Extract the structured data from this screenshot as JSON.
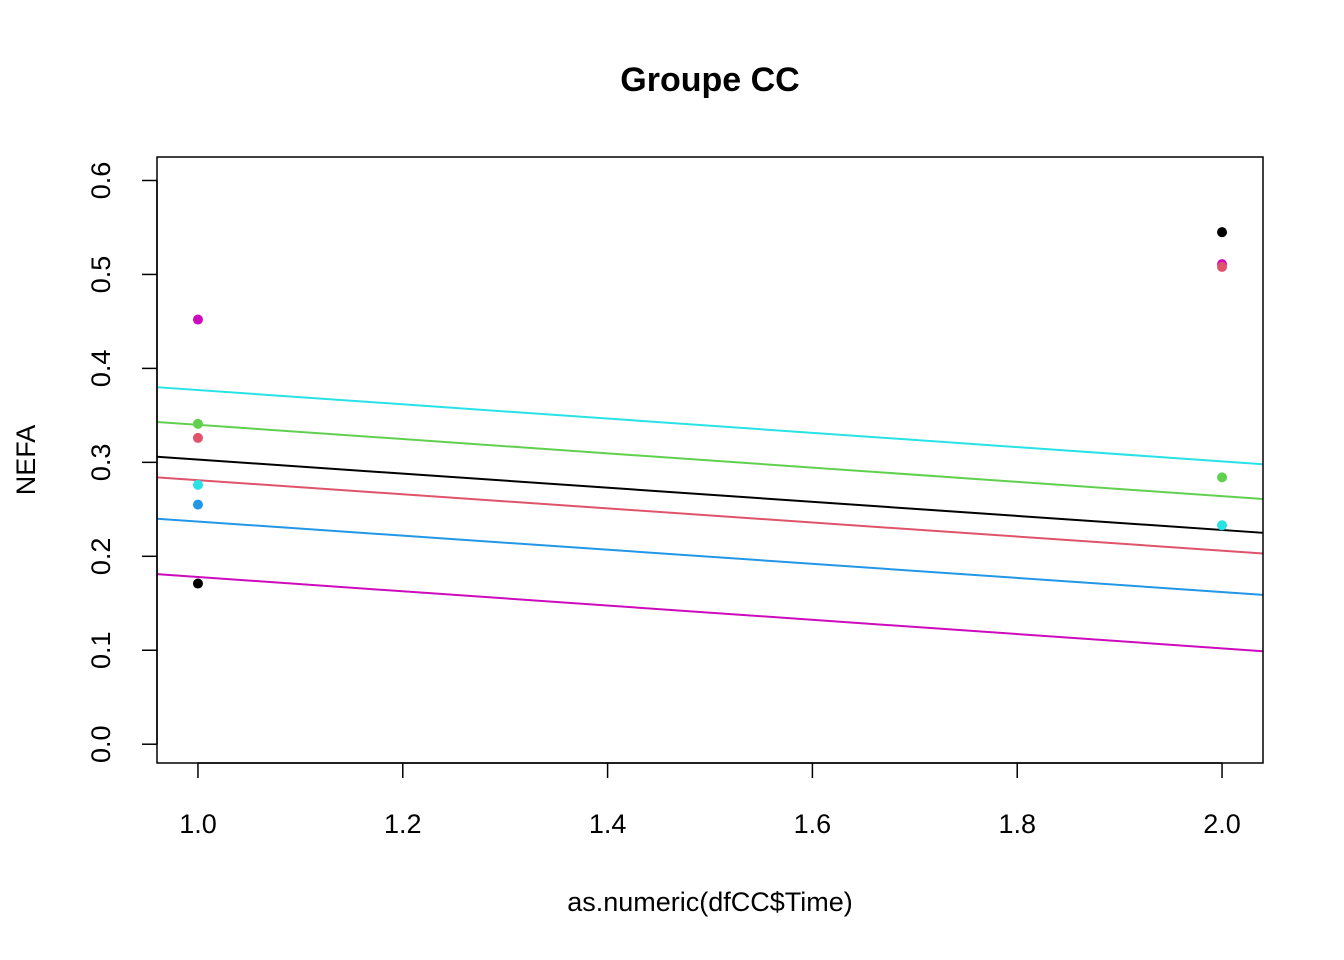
{
  "chart_data": {
    "type": "scatter",
    "title": "Groupe CC",
    "xlabel": "as.numeric(dfCC$Time)",
    "ylabel": "NEFA",
    "xlim": [
      0.96,
      2.04
    ],
    "ylim": [
      -0.02,
      0.625
    ],
    "x_ticks": [
      1.0,
      1.2,
      1.4,
      1.6,
      1.8,
      2.0
    ],
    "x_tick_labels": [
      "1.0",
      "1.2",
      "1.4",
      "1.6",
      "1.8",
      "2.0"
    ],
    "y_ticks": [
      0.0,
      0.1,
      0.2,
      0.3,
      0.4,
      0.5,
      0.6
    ],
    "y_tick_labels": [
      "0.0",
      "0.1",
      "0.2",
      "0.3",
      "0.4",
      "0.5",
      "0.6"
    ],
    "grid": false,
    "points": [
      {
        "x": 1.0,
        "y": 0.452,
        "color": "#CD0BBC"
      },
      {
        "x": 1.0,
        "y": 0.341,
        "color": "#61D04F"
      },
      {
        "x": 1.0,
        "y": 0.326,
        "color": "#DF536B"
      },
      {
        "x": 1.0,
        "y": 0.276,
        "color": "#28E2E5"
      },
      {
        "x": 1.0,
        "y": 0.255,
        "color": "#2297E6"
      },
      {
        "x": 1.0,
        "y": 0.171,
        "color": "#000000"
      },
      {
        "x": 2.0,
        "y": 0.545,
        "color": "#000000"
      },
      {
        "x": 2.0,
        "y": 0.511,
        "color": "#CD0BBC"
      },
      {
        "x": 2.0,
        "y": 0.508,
        "color": "#DF536B"
      },
      {
        "x": 2.0,
        "y": 0.284,
        "color": "#61D04F"
      },
      {
        "x": 2.0,
        "y": 0.233,
        "color": "#28E2E5"
      }
    ],
    "lines": [
      {
        "color": "#28E2E5",
        "x": [
          0.96,
          2.04
        ],
        "y": [
          0.38,
          0.298
        ]
      },
      {
        "color": "#61D04F",
        "x": [
          0.96,
          2.04
        ],
        "y": [
          0.343,
          0.261
        ]
      },
      {
        "color": "#000000",
        "x": [
          0.96,
          2.04
        ],
        "y": [
          0.306,
          0.225
        ]
      },
      {
        "color": "#DF536B",
        "x": [
          0.96,
          2.04
        ],
        "y": [
          0.284,
          0.203
        ]
      },
      {
        "color": "#2297E6",
        "x": [
          0.96,
          2.04
        ],
        "y": [
          0.24,
          0.159
        ]
      },
      {
        "color": "#CD0BBC",
        "x": [
          0.96,
          2.04
        ],
        "y": [
          0.181,
          0.099
        ]
      }
    ]
  }
}
